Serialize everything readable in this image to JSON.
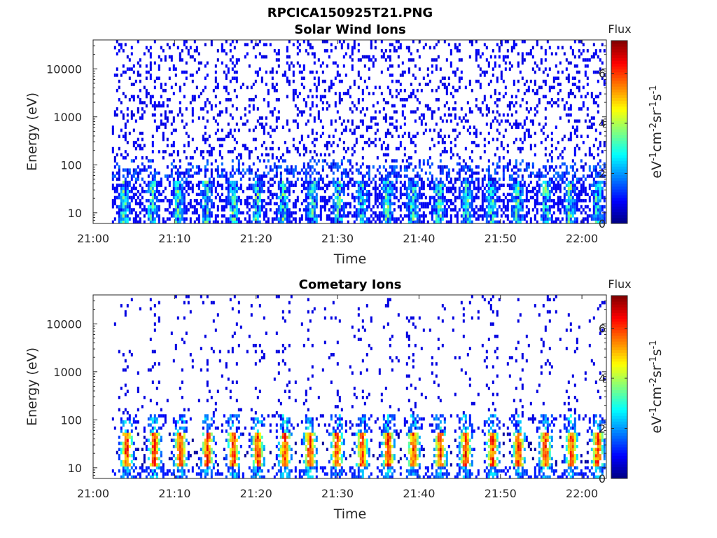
{
  "figure_title": "RPCICA150925T21.PNG",
  "chart_data": [
    {
      "type": "heatmap",
      "title": "Solar Wind Ions",
      "xlabel": "Time",
      "ylabel": "Energy (eV)",
      "xticks": [
        "21:00",
        "21:10",
        "21:20",
        "21:30",
        "21:40",
        "21:50",
        "22:00"
      ],
      "xlim_minutes": [
        0,
        63
      ],
      "yscale": "log",
      "ylim": [
        6,
        40000
      ],
      "yticks": [
        10,
        100,
        1000,
        10000
      ],
      "ytick_labels": [
        "10",
        "100",
        "1000",
        "10000"
      ],
      "colorbar": {
        "title": "Flux",
        "label": "eV-1cm-2sr-1s-1",
        "range": [
          0,
          7.3
        ],
        "ticks": [
          "0",
          "2",
          "4",
          "6"
        ],
        "colormap": "jet"
      },
      "data_start_minute": 2.3,
      "pulse_minutes": [
        3.7,
        7.1,
        10.3,
        13.8,
        17.1,
        20.0,
        23.2,
        26.8,
        30.0,
        32.9,
        36.0,
        39.1,
        42.3,
        45.7,
        48.8,
        52.0,
        55.4,
        58.4,
        61.8
      ],
      "pulse_peak_flux": 4.2,
      "background_flux": 0.6
    },
    {
      "type": "heatmap",
      "title": "Cometary Ions",
      "xlabel": "Time",
      "ylabel": "Energy (eV)",
      "xticks": [
        "21:00",
        "21:10",
        "21:20",
        "21:30",
        "21:40",
        "21:50",
        "22:00"
      ],
      "xlim_minutes": [
        0,
        63
      ],
      "yscale": "log",
      "ylim": [
        6,
        40000
      ],
      "yticks": [
        10,
        100,
        1000,
        10000
      ],
      "ytick_labels": [
        "10",
        "100",
        "1000",
        "10000"
      ],
      "colorbar": {
        "title": "Flux",
        "label": "eV-1cm-2sr-1s-1",
        "range": [
          0,
          7.3
        ],
        "ticks": [
          "0",
          "2",
          "4",
          "6"
        ],
        "colormap": "jet"
      },
      "data_start_minute": 2.3,
      "pulse_minutes": [
        4.0,
        7.4,
        10.6,
        13.9,
        17.1,
        20.1,
        23.4,
        26.5,
        29.8,
        32.9,
        36.1,
        39.2,
        42.5,
        45.6,
        48.9,
        52.1,
        55.4,
        58.6,
        61.8
      ],
      "pulse_peak_flux": 6.8,
      "background_flux": 0.7
    }
  ]
}
